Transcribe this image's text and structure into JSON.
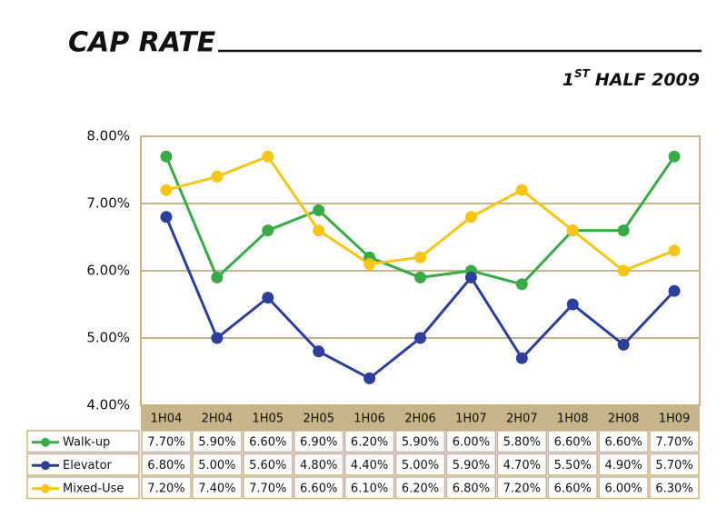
{
  "chart_data": {
    "type": "line",
    "title": "CAP RATE",
    "subtitle": {
      "number": "1",
      "superscript": "ST",
      "rest": "HALF 2009"
    },
    "categories": [
      "1H04",
      "2H04",
      "1H05",
      "2H05",
      "1H06",
      "2H06",
      "1H07",
      "2H07",
      "1H08",
      "2H08",
      "1H09"
    ],
    "series": [
      {
        "name": "Walk-up",
        "color": "#3aaa48",
        "values": [
          7.7,
          5.9,
          6.6,
          6.9,
          6.2,
          5.9,
          6.0,
          5.8,
          6.6,
          6.6,
          7.7
        ],
        "value_labels": [
          "7.70%",
          "5.90%",
          "6.60%",
          "6.90%",
          "6.20%",
          "5.90%",
          "6.00%",
          "5.80%",
          "6.60%",
          "6.60%",
          "7.70%"
        ]
      },
      {
        "name": "Elevator",
        "color": "#2e3f99",
        "values": [
          6.8,
          5.0,
          5.6,
          4.8,
          4.4,
          5.0,
          5.9,
          4.7,
          5.5,
          4.9,
          5.7
        ],
        "value_labels": [
          "6.80%",
          "5.00%",
          "5.60%",
          "4.80%",
          "4.40%",
          "5.00%",
          "5.90%",
          "4.70%",
          "5.50%",
          "4.90%",
          "5.70%"
        ]
      },
      {
        "name": "Mixed-Use",
        "color": "#f5c518",
        "values": [
          7.2,
          7.4,
          7.7,
          6.6,
          6.1,
          6.2,
          6.8,
          7.2,
          6.6,
          6.0,
          6.3
        ],
        "value_labels": [
          "7.20%",
          "7.40%",
          "7.70%",
          "6.60%",
          "6.10%",
          "6.20%",
          "6.80%",
          "7.20%",
          "6.60%",
          "6.00%",
          "6.30%"
        ]
      }
    ],
    "ylim": [
      4,
      8
    ],
    "yticks": [
      {
        "value": 4,
        "label": "4.00%"
      },
      {
        "value": 5,
        "label": "5.00%"
      },
      {
        "value": 6,
        "label": "6.00%"
      },
      {
        "value": 7,
        "label": "7.00%"
      },
      {
        "value": 8,
        "label": "8.00%"
      }
    ],
    "grid": true,
    "grid_color": "#c8b48a"
  }
}
